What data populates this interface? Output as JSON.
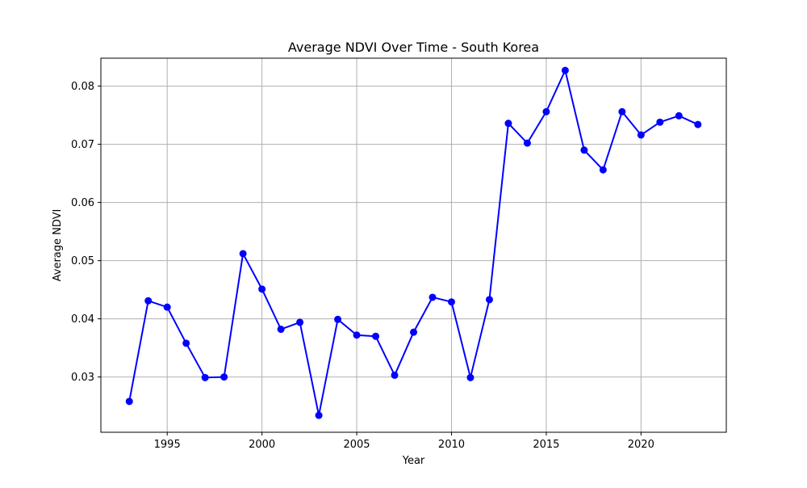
{
  "chart_data": {
    "type": "line",
    "title": "Average NDVI Over Time - South Korea",
    "xlabel": "Year",
    "ylabel": "Average NDVI",
    "xlim": [
      1991.5,
      2024.5
    ],
    "ylim": [
      0.0205,
      0.0848
    ],
    "grid": true,
    "x_ticks": [
      {
        "value": 1995,
        "label": "1995"
      },
      {
        "value": 2000,
        "label": "2000"
      },
      {
        "value": 2005,
        "label": "2005"
      },
      {
        "value": 2010,
        "label": "2010"
      },
      {
        "value": 2015,
        "label": "2015"
      },
      {
        "value": 2020,
        "label": "2020"
      }
    ],
    "y_ticks": [
      {
        "value": 0.03,
        "label": "0.03"
      },
      {
        "value": 0.04,
        "label": "0.04"
      },
      {
        "value": 0.05,
        "label": "0.05"
      },
      {
        "value": 0.06,
        "label": "0.06"
      },
      {
        "value": 0.07,
        "label": "0.07"
      },
      {
        "value": 0.08,
        "label": "0.08"
      }
    ],
    "series": [
      {
        "color": "#0000ff",
        "marker": "circle",
        "points": [
          {
            "x": 1993,
            "y": 0.0258
          },
          {
            "x": 1994,
            "y": 0.0431
          },
          {
            "x": 1995,
            "y": 0.042
          },
          {
            "x": 1996,
            "y": 0.0358
          },
          {
            "x": 1997,
            "y": 0.0299
          },
          {
            "x": 1998,
            "y": 0.03
          },
          {
            "x": 1999,
            "y": 0.0512
          },
          {
            "x": 2000,
            "y": 0.0451
          },
          {
            "x": 2001,
            "y": 0.0382
          },
          {
            "x": 2002,
            "y": 0.0394
          },
          {
            "x": 2003,
            "y": 0.0234
          },
          {
            "x": 2004,
            "y": 0.0399
          },
          {
            "x": 2005,
            "y": 0.0372
          },
          {
            "x": 2006,
            "y": 0.037
          },
          {
            "x": 2007,
            "y": 0.0303
          },
          {
            "x": 2008,
            "y": 0.0377
          },
          {
            "x": 2009,
            "y": 0.0437
          },
          {
            "x": 2010,
            "y": 0.0429
          },
          {
            "x": 2011,
            "y": 0.0299
          },
          {
            "x": 2012,
            "y": 0.0433
          },
          {
            "x": 2013,
            "y": 0.0736
          },
          {
            "x": 2014,
            "y": 0.0702
          },
          {
            "x": 2015,
            "y": 0.0756
          },
          {
            "x": 2016,
            "y": 0.0827
          },
          {
            "x": 2017,
            "y": 0.069
          },
          {
            "x": 2018,
            "y": 0.0656
          },
          {
            "x": 2019,
            "y": 0.0756
          },
          {
            "x": 2020,
            "y": 0.0716
          },
          {
            "x": 2021,
            "y": 0.0738
          },
          {
            "x": 2022,
            "y": 0.0749
          },
          {
            "x": 2023,
            "y": 0.0734
          }
        ]
      }
    ]
  }
}
